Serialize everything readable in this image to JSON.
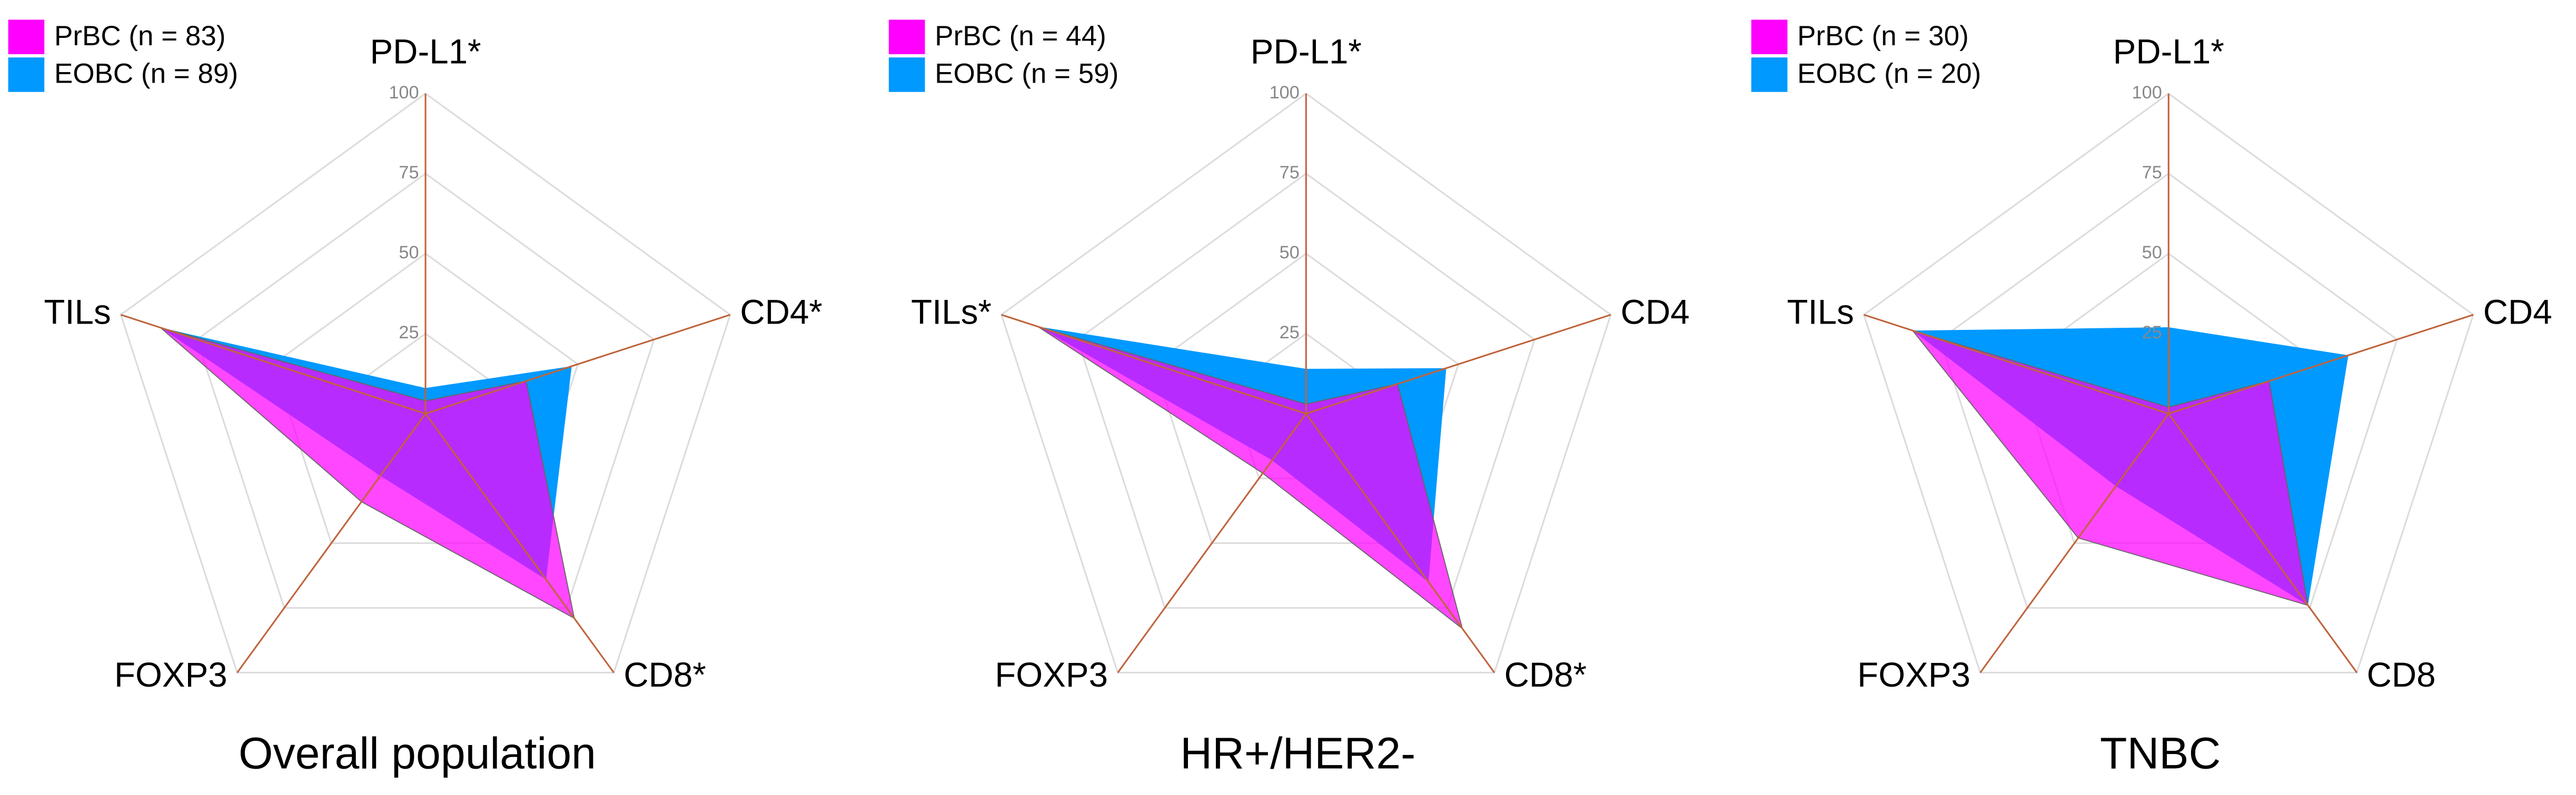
{
  "chart_data": [
    {
      "type": "radar",
      "title": "Overall population",
      "categories": [
        "PD-L1*",
        "CD4*",
        "CD8*",
        "FOXP3",
        "TILs"
      ],
      "rlim": [
        0,
        100
      ],
      "rticks": [
        25,
        50,
        75,
        100
      ],
      "series": [
        {
          "name": "PrBC (n = 83)",
          "color": "#ff00ff",
          "values": [
            4,
            33,
            79,
            34,
            87
          ]
        },
        {
          "name": "EOBC (n = 89)",
          "color": "#0099ff",
          "values": [
            8,
            48,
            64,
            24,
            87
          ]
        }
      ]
    },
    {
      "type": "radar",
      "title": "HR+/HER2-",
      "categories": [
        "PD-L1*",
        "CD4",
        "CD8*",
        "FOXP3",
        "TILs*"
      ],
      "rlim": [
        0,
        100
      ],
      "rticks": [
        25,
        50,
        75,
        100
      ],
      "series": [
        {
          "name": "PrBC (n = 44)",
          "color": "#ff00ff",
          "values": [
            3,
            30,
            83,
            23,
            88
          ]
        },
        {
          "name": "EOBC (n = 59)",
          "color": "#0099ff",
          "values": [
            14,
            46,
            65,
            18,
            88
          ]
        }
      ]
    },
    {
      "type": "radar",
      "title": "TNBC",
      "categories": [
        "PD-L1*",
        "CD4",
        "CD8",
        "FOXP3",
        "TILs"
      ],
      "rlim": [
        0,
        100
      ],
      "rticks": [
        25,
        50,
        75,
        100
      ],
      "series": [
        {
          "name": "PrBC (n = 30)",
          "color": "#ff00ff",
          "values": [
            2,
            33,
            74,
            48,
            84
          ]
        },
        {
          "name": "EOBC (n = 20)",
          "color": "#0099ff",
          "values": [
            27,
            59,
            74,
            28,
            84
          ]
        }
      ]
    }
  ]
}
